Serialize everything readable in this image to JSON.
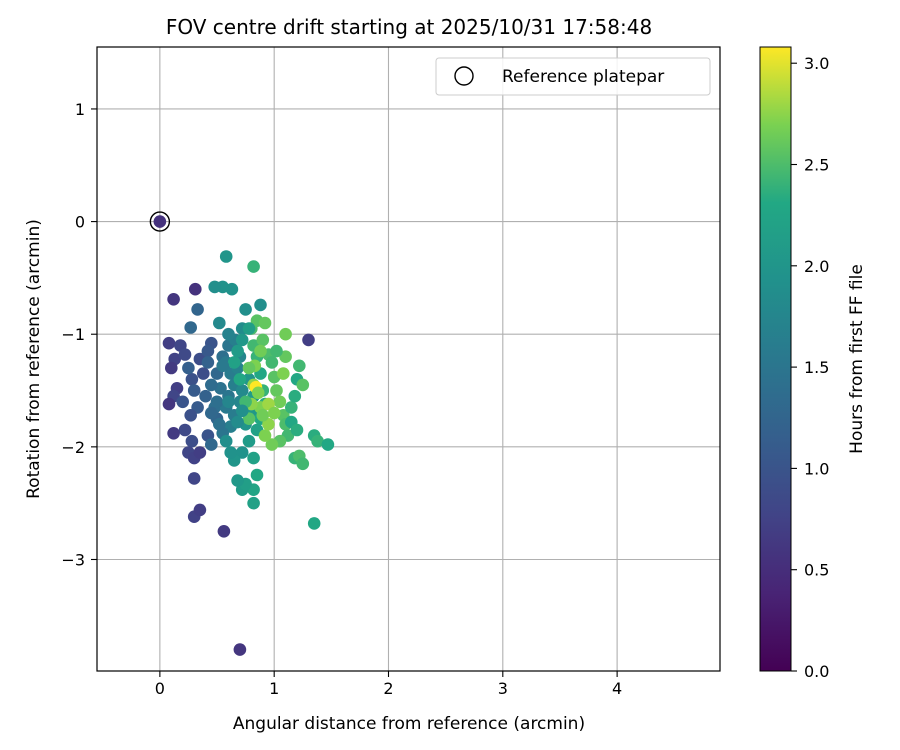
{
  "chart_data": {
    "type": "scatter",
    "title": "FOV centre drift starting at 2025/10/31 17:58:48",
    "xlabel": "Angular distance from reference (arcmin)",
    "ylabel": "Rotation from reference (arcmin)",
    "xlim": [
      -0.55,
      4.9
    ],
    "ylim": [
      -3.99,
      1.55
    ],
    "xticks": [
      0,
      1,
      2,
      3,
      4
    ],
    "yticks": [
      1,
      0,
      -1,
      -2,
      -3
    ],
    "grid": true,
    "legend": {
      "placement": "top-right",
      "entries": [
        "Reference platepar"
      ]
    },
    "colorbar": {
      "label": "Hours from first FF file",
      "range": [
        0.0,
        3.08
      ],
      "ticks": [
        0.0,
        0.5,
        1.0,
        1.5,
        2.0,
        2.5,
        3.0
      ],
      "colormap": "viridis"
    },
    "reference_point": {
      "x": 0.0,
      "y": 0.0,
      "hours": 0.55
    },
    "points": [
      [
        0.12,
        -0.69,
        0.6
      ],
      [
        0.31,
        -0.6,
        0.55
      ],
      [
        0.08,
        -1.08,
        0.7
      ],
      [
        0.27,
        -0.94,
        1.3
      ],
      [
        0.33,
        -0.78,
        1.25
      ],
      [
        0.13,
        -1.22,
        0.75
      ],
      [
        0.18,
        -1.1,
        0.8
      ],
      [
        0.1,
        -1.3,
        0.65
      ],
      [
        0.22,
        -1.18,
        0.85
      ],
      [
        0.35,
        -1.22,
        0.9
      ],
      [
        0.45,
        -1.08,
        1.0
      ],
      [
        0.42,
        -1.15,
        1.05
      ],
      [
        0.38,
        -1.35,
        0.9
      ],
      [
        0.28,
        -1.4,
        0.95
      ],
      [
        0.15,
        -1.48,
        0.7
      ],
      [
        0.12,
        -1.55,
        0.8
      ],
      [
        0.08,
        -1.62,
        0.6
      ],
      [
        0.2,
        -1.6,
        1.0
      ],
      [
        0.3,
        -1.5,
        1.1
      ],
      [
        0.25,
        -1.3,
        1.15
      ],
      [
        0.4,
        -1.55,
        1.2
      ],
      [
        0.33,
        -1.65,
        1.1
      ],
      [
        0.27,
        -1.72,
        0.95
      ],
      [
        0.22,
        -1.85,
        0.85
      ],
      [
        0.12,
        -1.88,
        0.65
      ],
      [
        0.28,
        -1.95,
        0.9
      ],
      [
        0.25,
        -2.05,
        0.8
      ],
      [
        0.3,
        -2.1,
        0.75
      ],
      [
        0.35,
        -2.05,
        0.7
      ],
      [
        0.42,
        -1.9,
        1.0
      ],
      [
        0.45,
        -1.98,
        1.3
      ],
      [
        0.5,
        -1.75,
        1.25
      ],
      [
        0.48,
        -1.65,
        1.4
      ],
      [
        0.53,
        -1.48,
        1.45
      ],
      [
        0.45,
        -1.45,
        1.35
      ],
      [
        0.5,
        -1.35,
        1.3
      ],
      [
        0.42,
        -1.25,
        1.2
      ],
      [
        0.55,
        -1.2,
        1.4
      ],
      [
        0.6,
        -1.1,
        1.5
      ],
      [
        0.58,
        -1.25,
        1.55
      ],
      [
        0.62,
        -1.35,
        1.6
      ],
      [
        0.65,
        -1.45,
        1.65
      ],
      [
        0.6,
        -1.55,
        1.5
      ],
      [
        0.58,
        -1.65,
        1.55
      ],
      [
        0.65,
        -1.72,
        1.6
      ],
      [
        0.62,
        -1.82,
        1.65
      ],
      [
        0.55,
        -1.88,
        1.5
      ],
      [
        0.52,
        -1.8,
        1.45
      ],
      [
        0.7,
        -1.6,
        1.75
      ],
      [
        0.72,
        -1.5,
        1.8
      ],
      [
        0.68,
        -1.3,
        1.7
      ],
      [
        0.7,
        -1.2,
        1.75
      ],
      [
        0.66,
        -1.05,
        1.65
      ],
      [
        0.72,
        -0.95,
        1.85
      ],
      [
        0.75,
        -0.78,
        1.9
      ],
      [
        0.63,
        -0.6,
        1.95
      ],
      [
        0.55,
        -0.58,
        1.95
      ],
      [
        0.48,
        -0.58,
        1.9
      ],
      [
        0.58,
        -0.31,
        2.0
      ],
      [
        0.52,
        -0.9,
        1.8
      ],
      [
        0.78,
        -1.4,
        2.0
      ],
      [
        0.82,
        -1.55,
        2.1
      ],
      [
        0.8,
        -1.7,
        2.05
      ],
      [
        0.75,
        -1.8,
        2.0
      ],
      [
        0.78,
        -1.95,
        2.1
      ],
      [
        0.72,
        -2.05,
        1.95
      ],
      [
        0.65,
        -2.12,
        2.0
      ],
      [
        0.62,
        -2.05,
        1.95
      ],
      [
        0.58,
        -1.95,
        1.9
      ],
      [
        0.85,
        -1.85,
        2.2
      ],
      [
        0.88,
        -1.75,
        2.3
      ],
      [
        0.92,
        -1.62,
        2.35
      ],
      [
        0.9,
        -1.5,
        2.4
      ],
      [
        0.88,
        -1.35,
        2.3
      ],
      [
        0.85,
        -1.2,
        2.4
      ],
      [
        0.82,
        -1.1,
        2.45
      ],
      [
        0.8,
        -0.95,
        2.5
      ],
      [
        0.85,
        -0.88,
        2.55
      ],
      [
        0.92,
        -0.9,
        2.6
      ],
      [
        0.9,
        -1.05,
        2.55
      ],
      [
        0.95,
        -1.18,
        2.5
      ],
      [
        0.98,
        -1.25,
        2.45
      ],
      [
        1.0,
        -1.38,
        2.55
      ],
      [
        1.02,
        -1.5,
        2.6
      ],
      [
        1.05,
        -1.6,
        2.65
      ],
      [
        1.08,
        -1.72,
        2.55
      ],
      [
        1.1,
        -1.8,
        2.5
      ],
      [
        1.12,
        -1.9,
        2.45
      ],
      [
        1.05,
        -1.95,
        2.55
      ],
      [
        0.98,
        -1.98,
        2.65
      ],
      [
        0.92,
        -1.9,
        2.7
      ],
      [
        0.95,
        -1.8,
        2.75
      ],
      [
        0.88,
        -1.65,
        2.7
      ],
      [
        0.82,
        -1.45,
        2.75
      ],
      [
        0.84,
        -1.47,
        3.08
      ],
      [
        1.15,
        -1.65,
        2.4
      ],
      [
        1.18,
        -1.55,
        2.35
      ],
      [
        1.2,
        -1.4,
        2.3
      ],
      [
        1.22,
        -1.28,
        2.45
      ],
      [
        1.25,
        -1.45,
        2.55
      ],
      [
        1.15,
        -1.78,
        2.3
      ],
      [
        1.2,
        -1.85,
        2.35
      ],
      [
        1.18,
        -2.1,
        2.4
      ],
      [
        1.22,
        -2.08,
        2.5
      ],
      [
        1.25,
        -2.15,
        2.45
      ],
      [
        1.35,
        -1.9,
        2.35
      ],
      [
        1.38,
        -1.95,
        2.4
      ],
      [
        1.47,
        -1.98,
        2.3
      ],
      [
        1.1,
        -1.2,
        2.6
      ],
      [
        1.1,
        -1.0,
        2.65
      ],
      [
        1.08,
        -1.35,
        2.7
      ],
      [
        0.88,
        -1.15,
        2.65
      ],
      [
        0.83,
        -1.28,
        2.7
      ],
      [
        0.78,
        -1.3,
        2.6
      ],
      [
        0.8,
        -1.62,
        2.75
      ],
      [
        0.86,
        -1.52,
        2.7
      ],
      [
        0.9,
        -1.72,
        2.65
      ],
      [
        0.95,
        -1.62,
        2.8
      ],
      [
        1.0,
        -1.7,
        2.7
      ],
      [
        0.78,
        -1.75,
        2.55
      ],
      [
        0.75,
        -1.6,
        2.45
      ],
      [
        0.7,
        -1.4,
        2.3
      ],
      [
        0.65,
        -1.25,
        2.2
      ],
      [
        0.68,
        -1.15,
        2.1
      ],
      [
        0.72,
        -1.05,
        2.05
      ],
      [
        0.78,
        -0.95,
        2.15
      ],
      [
        0.82,
        -2.1,
        2.2
      ],
      [
        0.85,
        -2.25,
        2.3
      ],
      [
        0.82,
        -2.38,
        2.25
      ],
      [
        0.72,
        -2.38,
        2.1
      ],
      [
        0.75,
        -2.33,
        2.15
      ],
      [
        0.68,
        -2.3,
        2.05
      ],
      [
        0.82,
        -2.5,
        2.2
      ],
      [
        0.82,
        -0.4,
        2.4
      ],
      [
        0.88,
        -0.74,
        1.9
      ],
      [
        1.3,
        -1.05,
        0.7
      ],
      [
        1.35,
        -2.68,
        2.3
      ],
      [
        0.3,
        -2.28,
        0.8
      ],
      [
        0.3,
        -2.62,
        0.75
      ],
      [
        0.35,
        -2.56,
        0.7
      ],
      [
        0.56,
        -2.75,
        0.65
      ],
      [
        0.7,
        -3.8,
        0.6
      ],
      [
        0.6,
        -1.0,
        1.7
      ],
      [
        0.55,
        -1.28,
        1.55
      ],
      [
        0.5,
        -1.6,
        1.4
      ],
      [
        0.45,
        -1.7,
        1.3
      ],
      [
        0.6,
        -1.6,
        1.75
      ],
      [
        0.68,
        -1.78,
        1.85
      ],
      [
        0.72,
        -1.68,
        1.9
      ],
      [
        1.02,
        -1.15,
        2.45
      ]
    ]
  }
}
